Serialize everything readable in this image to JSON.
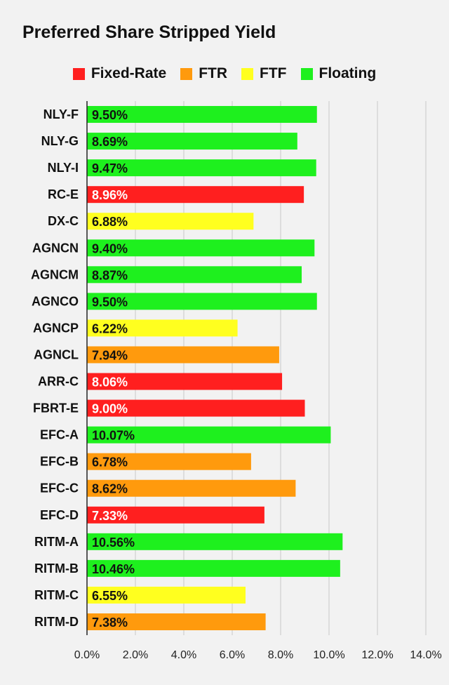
{
  "chart_data": {
    "type": "bar",
    "orientation": "horizontal",
    "title": "Preferred Share Stripped Yield",
    "xlabel": "",
    "ylabel": "",
    "xlim": [
      0,
      14
    ],
    "ticks": [
      "0.0%",
      "2.0%",
      "4.0%",
      "6.0%",
      "8.0%",
      "10.0%",
      "12.0%",
      "14.0%"
    ],
    "tick_values": [
      0,
      2,
      4,
      6,
      8,
      10,
      12,
      14
    ],
    "grid": true,
    "legend_position": "top-center",
    "legend": [
      {
        "name": "Fixed-Rate",
        "color": "#ff1f1f"
      },
      {
        "name": "FTR",
        "color": "#ff9a0d"
      },
      {
        "name": "FTF",
        "color": "#ffff1f"
      },
      {
        "name": "Floating",
        "color": "#1ef01e"
      }
    ],
    "categories": [
      "NLY-F",
      "NLY-G",
      "NLY-I",
      "RC-E",
      "DX-C",
      "AGNCN",
      "AGNCM",
      "AGNCO",
      "AGNCP",
      "AGNCL",
      "ARR-C",
      "FBRT-E",
      "EFC-A",
      "EFC-B",
      "EFC-C",
      "EFC-D",
      "RITM-A",
      "RITM-B",
      "RITM-C",
      "RITM-D"
    ],
    "values": [
      9.5,
      8.69,
      9.47,
      8.96,
      6.88,
      9.4,
      8.87,
      9.5,
      6.22,
      7.94,
      8.06,
      9.0,
      10.07,
      6.78,
      8.62,
      7.33,
      10.56,
      10.46,
      6.55,
      7.38
    ],
    "value_labels": [
      "9.50%",
      "8.69%",
      "9.47%",
      "8.96%",
      "6.88%",
      "9.40%",
      "8.87%",
      "9.50%",
      "6.22%",
      "7.94%",
      "8.06%",
      "9.00%",
      "10.07%",
      "6.78%",
      "8.62%",
      "7.33%",
      "10.56%",
      "10.46%",
      "6.55%",
      "7.38%"
    ],
    "types": [
      "Floating",
      "Floating",
      "Floating",
      "Fixed-Rate",
      "FTF",
      "Floating",
      "Floating",
      "Floating",
      "FTF",
      "FTR",
      "Fixed-Rate",
      "Fixed-Rate",
      "Floating",
      "FTR",
      "FTR",
      "Fixed-Rate",
      "Floating",
      "Floating",
      "FTF",
      "FTR"
    ]
  }
}
